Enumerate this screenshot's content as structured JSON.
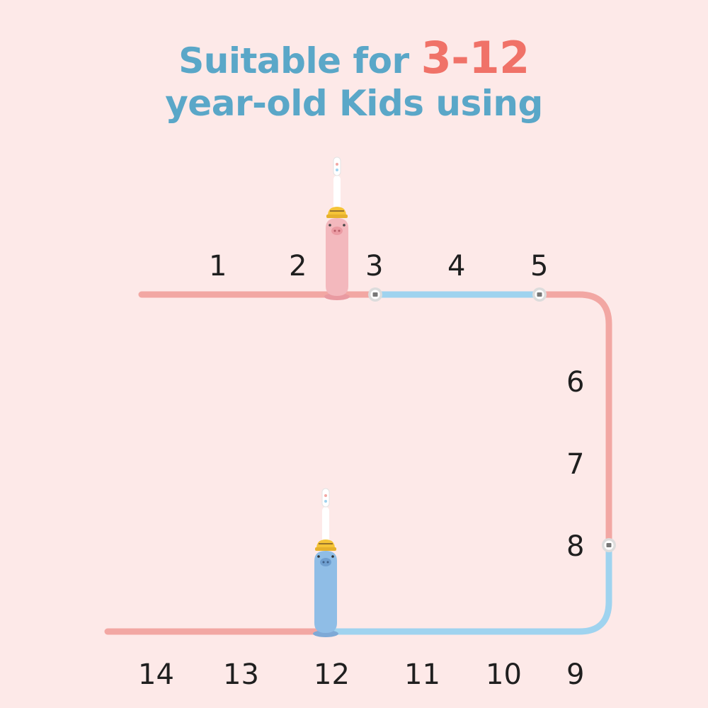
{
  "title": {
    "line1_prefix": "Suitable for ",
    "line1_accent": "3-12",
    "line2": "year-old Kids using"
  },
  "ages_top": [
    "1",
    "2",
    "3",
    "4",
    "5"
  ],
  "ages_right": [
    "6",
    "7",
    "8"
  ],
  "ages_bottom": [
    "14",
    "13",
    "12",
    "11",
    "10",
    "9"
  ],
  "colors": {
    "background": "#fde9e8",
    "title": "#5aa7c8",
    "accent": "#f07268",
    "track_pink": "#f2a7a3",
    "track_blue": "#9fd3ef",
    "pink_brush": "#f3b8bd",
    "blue_brush": "#8fbde6",
    "hat": "#f5c437"
  }
}
